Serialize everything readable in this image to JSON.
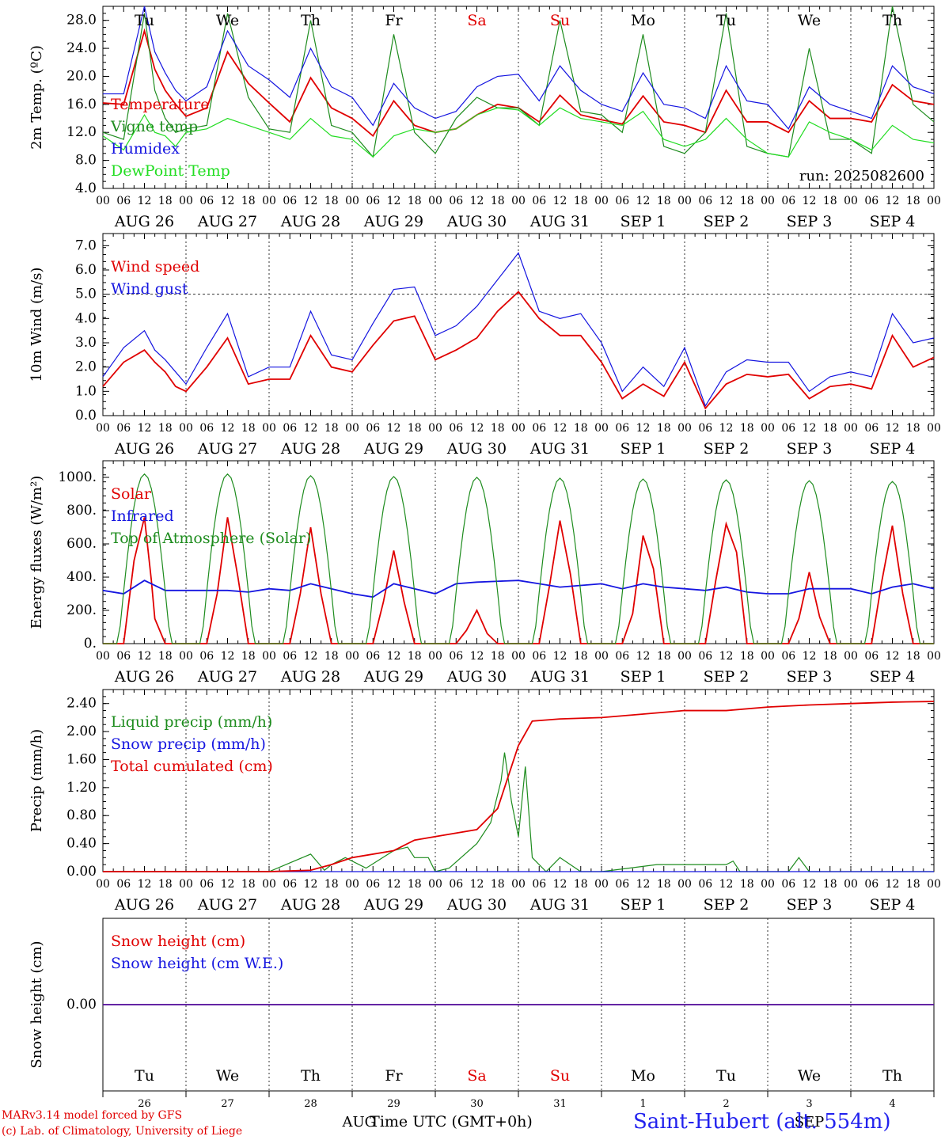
{
  "run_label": "run: 2025082600",
  "day_names": [
    "Tu",
    "We",
    "Th",
    "Fr",
    "Sa",
    "Su",
    "Mo",
    "Tu",
    "We",
    "Th"
  ],
  "weekend_days": [
    "Sa",
    "Su"
  ],
  "date_labels": [
    "AUG 26",
    "AUG 27",
    "AUG 28",
    "AUG 29",
    "AUG 30",
    "AUG 31",
    "SEP  1",
    "SEP  2",
    "SEP  3",
    "SEP  4"
  ],
  "hour_ticks": [
    "00",
    "06",
    "12",
    "18"
  ],
  "footer": {
    "credit_line1": "MARv3.14 model forced by GFS",
    "credit_line2": "(c) Lab. of Climatology, University of Liege",
    "station": "Saint-Hubert (alt. 554m)",
    "month_left": "AUG",
    "month_right": "SEP",
    "xlabel": "Time UTC (GMT+0h)",
    "day_numbers": [
      "26",
      "27",
      "28",
      "29",
      "30",
      "31",
      "1",
      "2",
      "3",
      "4"
    ]
  },
  "colors": {
    "red": "#e00000",
    "green": "#1e8c1e",
    "blue": "#1515e0",
    "lightgreen": "#22dd22",
    "black": "#000000"
  },
  "chart_data": [
    {
      "type": "line",
      "ylabel": "2m Temp. (ºC)",
      "ylim": [
        4,
        30
      ],
      "yticks": [
        "28.0",
        "24.0",
        "20.0",
        "16.0",
        "12.0",
        "8.0",
        "4.0"
      ],
      "x_unit": "hours since 2025-08-26 00 UTC",
      "series": [
        {
          "name": "Temperature",
          "color": "red",
          "x": [
            0,
            6,
            12,
            15,
            18,
            21,
            24,
            30,
            36,
            42,
            48,
            54,
            60,
            66,
            72,
            78,
            84,
            90,
            96,
            102,
            108,
            114,
            120,
            126,
            132,
            138,
            144,
            150,
            156,
            162,
            168,
            174,
            180,
            186,
            192,
            198,
            204,
            210,
            216,
            222,
            228,
            234,
            240
          ],
          "y": [
            16.2,
            16,
            26.5,
            21,
            18,
            16,
            14.3,
            15.5,
            23.5,
            19,
            16.2,
            13.5,
            19.8,
            15.5,
            14,
            11.5,
            16.5,
            13,
            12,
            12.5,
            14.5,
            16,
            15.5,
            13.5,
            17.3,
            14.5,
            13.8,
            13.2,
            17.2,
            13.5,
            13,
            12,
            18,
            13.5,
            13.5,
            12,
            16.5,
            14,
            14,
            13.5,
            18.8,
            16.5,
            16
          ]
        },
        {
          "name": "Vigne temp",
          "color": "green",
          "x": [
            0,
            6,
            12,
            15,
            18,
            21,
            24,
            30,
            36,
            42,
            48,
            54,
            60,
            66,
            72,
            78,
            84,
            90,
            96,
            102,
            108,
            114,
            120,
            126,
            132,
            138,
            144,
            150,
            156,
            162,
            168,
            174,
            180,
            186,
            192,
            198,
            204,
            210,
            216,
            222,
            228,
            234,
            240
          ],
          "y": [
            12,
            11,
            29,
            18,
            14,
            12,
            12.5,
            13,
            29,
            17,
            12.5,
            12,
            28,
            13,
            12,
            8.5,
            26,
            12,
            9,
            14,
            17,
            15.5,
            15.5,
            13,
            28,
            15,
            14.5,
            12,
            26,
            10,
            9,
            12,
            29,
            10,
            9,
            8.5,
            24,
            11,
            11,
            9,
            30,
            16,
            13.5
          ]
        },
        {
          "name": "Humidex",
          "color": "blue",
          "x": [
            0,
            6,
            12,
            15,
            18,
            21,
            24,
            30,
            36,
            42,
            48,
            54,
            60,
            66,
            72,
            78,
            84,
            90,
            96,
            102,
            108,
            114,
            120,
            126,
            132,
            138,
            144,
            150,
            156,
            162,
            168,
            174,
            180,
            186,
            192,
            198,
            204,
            210,
            216,
            222,
            228,
            234,
            240
          ],
          "y": [
            17.5,
            17.5,
            30,
            23.5,
            20.5,
            18,
            16.5,
            18.5,
            26.5,
            21.5,
            19.5,
            17,
            24,
            18.5,
            17,
            13,
            19,
            15.5,
            14,
            15,
            18.5,
            20,
            20.3,
            16.5,
            21.5,
            18,
            16,
            15,
            20.5,
            16,
            15.5,
            14,
            21.5,
            16.5,
            16,
            12.5,
            18.5,
            16,
            15,
            14,
            21.5,
            18.5,
            17.5
          ]
        },
        {
          "name": "DewPoint Temp",
          "color": "lightgreen",
          "x": [
            0,
            6,
            12,
            15,
            18,
            21,
            24,
            30,
            36,
            42,
            48,
            54,
            60,
            66,
            72,
            78,
            84,
            90,
            96,
            102,
            108,
            114,
            120,
            126,
            132,
            138,
            144,
            150,
            156,
            162,
            168,
            174,
            180,
            186,
            192,
            198,
            204,
            210,
            216,
            222,
            228,
            234,
            240
          ],
          "y": [
            11.5,
            9.5,
            14.5,
            12,
            11.5,
            10,
            12,
            12.5,
            14,
            13,
            12,
            11,
            14,
            11.5,
            11,
            8.5,
            11.5,
            12.5,
            12,
            12.5,
            14.5,
            15.5,
            15.2,
            13,
            15.5,
            14,
            13.5,
            13,
            15,
            11,
            10,
            11,
            14,
            11,
            9,
            8.5,
            13.5,
            12,
            11,
            9.5,
            13,
            11,
            10.5
          ]
        }
      ]
    },
    {
      "type": "line",
      "ylabel": "10m Wind (m/s)",
      "ylim": [
        0,
        7.5
      ],
      "yticks": [
        "7.0",
        "6.0",
        "5.0",
        "4.0",
        "3.0",
        "2.0",
        "1.0",
        "0.0"
      ],
      "x_unit": "hours since 2025-08-26 00 UTC",
      "series": [
        {
          "name": "Wind speed",
          "color": "red",
          "x": [
            0,
            6,
            12,
            15,
            18,
            21,
            24,
            30,
            36,
            42,
            48,
            54,
            60,
            66,
            72,
            78,
            84,
            90,
            96,
            102,
            108,
            114,
            120,
            126,
            132,
            138,
            144,
            150,
            156,
            162,
            168,
            174,
            180,
            186,
            192,
            198,
            204,
            210,
            216,
            222,
            228,
            234,
            240
          ],
          "y": [
            1.2,
            2.2,
            2.7,
            2.2,
            1.8,
            1.2,
            1.0,
            2.0,
            3.2,
            1.3,
            1.5,
            1.5,
            3.3,
            2.0,
            1.8,
            2.9,
            3.9,
            4.1,
            2.3,
            2.7,
            3.2,
            4.3,
            5.1,
            4.0,
            3.3,
            3.3,
            2.2,
            0.7,
            1.3,
            0.8,
            2.2,
            0.3,
            1.3,
            1.7,
            1.6,
            1.7,
            0.7,
            1.2,
            1.3,
            1.1,
            3.3,
            2.0,
            2.4
          ]
        },
        {
          "name": "Wind gust",
          "color": "blue",
          "x": [
            0,
            6,
            12,
            15,
            18,
            21,
            24,
            30,
            36,
            42,
            48,
            54,
            60,
            66,
            72,
            78,
            84,
            90,
            96,
            102,
            108,
            114,
            120,
            126,
            132,
            138,
            144,
            150,
            156,
            162,
            168,
            174,
            180,
            186,
            192,
            198,
            204,
            210,
            216,
            222,
            228,
            234,
            240
          ],
          "y": [
            1.6,
            2.8,
            3.5,
            2.7,
            2.3,
            1.8,
            1.3,
            2.8,
            4.2,
            1.6,
            2.0,
            2.0,
            4.3,
            2.5,
            2.3,
            3.8,
            5.2,
            5.3,
            3.3,
            3.7,
            4.5,
            5.6,
            6.7,
            4.3,
            4.0,
            4.2,
            3.0,
            1.0,
            2.0,
            1.2,
            2.8,
            0.4,
            1.8,
            2.3,
            2.2,
            2.2,
            1.0,
            1.6,
            1.8,
            1.6,
            4.2,
            3.0,
            3.2
          ]
        }
      ]
    },
    {
      "type": "line",
      "ylabel": "Energy fluxes (W/m²)",
      "ylim": [
        0,
        1100
      ],
      "yticks": [
        "1000.",
        "800.",
        "600.",
        "400.",
        "200.",
        "0."
      ],
      "x_unit": "hours since 2025-08-26 00 UTC",
      "series": [
        {
          "name": "Solar",
          "color": "red",
          "x": [
            0,
            6,
            9,
            12,
            14,
            15,
            18,
            24,
            30,
            33,
            36,
            39,
            42,
            48,
            54,
            57,
            60,
            63,
            66,
            72,
            78,
            81,
            84,
            87,
            90,
            96,
            102,
            105,
            108,
            111,
            114,
            120,
            126,
            129,
            132,
            135,
            138,
            144,
            150,
            153,
            156,
            159,
            162,
            168,
            174,
            177,
            180,
            183,
            186,
            192,
            198,
            201,
            204,
            207,
            210,
            216,
            222,
            225,
            228,
            231,
            234,
            240
          ],
          "y": [
            0,
            0,
            500,
            760,
            380,
            150,
            0,
            0,
            0,
            300,
            760,
            400,
            0,
            0,
            0,
            300,
            700,
            300,
            0,
            0,
            0,
            250,
            560,
            250,
            0,
            0,
            0,
            80,
            200,
            60,
            0,
            0,
            0,
            350,
            740,
            420,
            0,
            0,
            0,
            180,
            650,
            450,
            0,
            0,
            0,
            380,
            720,
            550,
            0,
            0,
            0,
            150,
            430,
            160,
            0,
            0,
            0,
            380,
            710,
            300,
            0,
            0
          ]
        },
        {
          "name": "Infrared",
          "color": "blue",
          "x": [
            0,
            6,
            12,
            18,
            24,
            30,
            36,
            42,
            48,
            54,
            60,
            66,
            72,
            78,
            84,
            90,
            96,
            102,
            108,
            114,
            120,
            126,
            132,
            138,
            144,
            150,
            156,
            162,
            168,
            174,
            180,
            186,
            192,
            198,
            204,
            210,
            216,
            222,
            228,
            234,
            240
          ],
          "y": [
            320,
            300,
            380,
            320,
            320,
            320,
            320,
            310,
            330,
            320,
            360,
            330,
            300,
            280,
            360,
            330,
            300,
            360,
            370,
            375,
            380,
            360,
            340,
            350,
            360,
            330,
            360,
            340,
            330,
            320,
            340,
            310,
            300,
            300,
            330,
            330,
            330,
            300,
            340,
            360,
            330
          ]
        },
        {
          "name": "Top of Atmosphere (Solar)",
          "color": "green",
          "peaks": [
            1020,
            1020,
            1010,
            1005,
            1000,
            995,
            990,
            985,
            980,
            975
          ]
        }
      ]
    },
    {
      "type": "line",
      "ylabel": "Precip (mm/h)",
      "ylim": [
        0,
        2.6
      ],
      "yticks": [
        "2.40",
        "2.00",
        "1.60",
        "1.20",
        "0.80",
        "0.40",
        "0.00"
      ],
      "x_unit": "hours since 2025-08-26 00 UTC",
      "series": [
        {
          "name": "Liquid precip (mm/h)",
          "color": "green",
          "x": [
            0,
            24,
            48,
            60,
            64,
            66,
            70,
            76,
            84,
            88,
            90,
            94,
            96,
            100,
            108,
            112,
            115,
            116,
            118,
            120,
            122,
            124,
            128,
            132,
            138,
            144,
            160,
            180,
            182,
            184,
            198,
            201,
            204,
            234,
            240
          ],
          "y": [
            0,
            0,
            0,
            0.25,
            0.02,
            0.1,
            0.2,
            0.05,
            0.3,
            0.35,
            0.2,
            0.2,
            0,
            0.05,
            0.4,
            0.7,
            1.3,
            1.7,
            1.0,
            0.5,
            1.5,
            0.2,
            0,
            0.2,
            0,
            0,
            0.1,
            0.1,
            0.15,
            0,
            0,
            0.2,
            0,
            0,
            0
          ]
        },
        {
          "name": "Snow precip (mm/h)",
          "color": "blue",
          "x": [
            0,
            240
          ],
          "y": [
            0,
            0
          ]
        },
        {
          "name": "Total cumulated (cm)",
          "color": "red",
          "x": [
            0,
            48,
            60,
            66,
            72,
            84,
            90,
            96,
            108,
            114,
            118,
            120,
            124,
            132,
            144,
            156,
            168,
            180,
            192,
            204,
            216,
            228,
            240
          ],
          "y": [
            0,
            0,
            0.02,
            0.1,
            0.2,
            0.3,
            0.45,
            0.5,
            0.6,
            0.9,
            1.5,
            1.8,
            2.15,
            2.18,
            2.2,
            2.25,
            2.3,
            2.3,
            2.35,
            2.38,
            2.4,
            2.42,
            2.43
          ]
        }
      ]
    },
    {
      "type": "line",
      "ylabel": "Snow height (cm)",
      "yticks": [
        "0.00"
      ],
      "ylim": [
        -1,
        1
      ],
      "x_unit": "hours since 2025-08-26 00 UTC",
      "series": [
        {
          "name": "Snow height (cm)",
          "color": "red",
          "x": [
            0,
            240
          ],
          "y": [
            0,
            0
          ]
        },
        {
          "name": "Snow height (cm W.E.)",
          "color": "blue",
          "x": [
            0,
            240
          ],
          "y": [
            0,
            0
          ]
        }
      ]
    }
  ]
}
